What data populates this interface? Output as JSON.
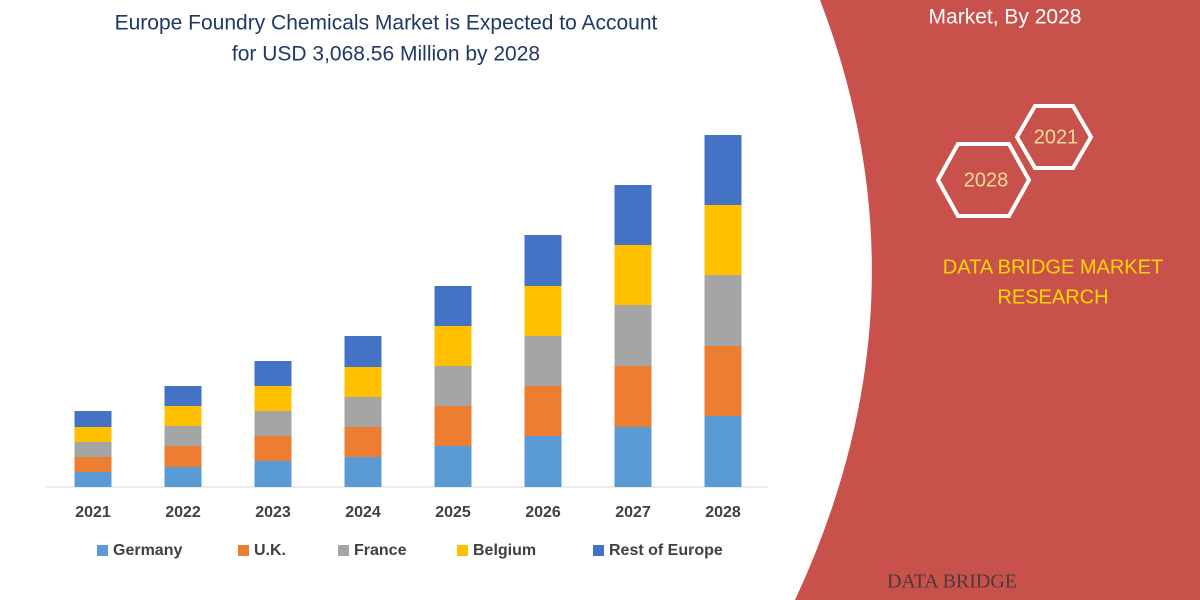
{
  "chart_data": {
    "type": "stacked-bar",
    "title": [
      "Europe Foundry Chemicals Market is Expected to Account",
      "for USD 3,068.56 Million by 2028"
    ],
    "categories": [
      "2021",
      "2022",
      "2023",
      "2024",
      "2025",
      "2026",
      "2027",
      "2028"
    ],
    "series": [
      {
        "name": "Germany",
        "color": "#5b9bd5",
        "values": [
          15,
          20,
          26,
          30,
          41,
          51,
          60,
          71
        ]
      },
      {
        "name": "U.K.",
        "color": "#ed7d31",
        "values": [
          15,
          21,
          25,
          30,
          40,
          50,
          61,
          70
        ]
      },
      {
        "name": "France",
        "color": "#a5a5a5",
        "values": [
          15,
          20,
          25,
          30,
          40,
          50,
          61,
          71
        ]
      },
      {
        "name": "Belgium",
        "color": "#ffc000",
        "values": [
          15,
          20,
          25,
          30,
          40,
          50,
          60,
          70
        ]
      },
      {
        "name": "Rest of Europe",
        "color": "#4472c4",
        "values": [
          16,
          20,
          25,
          31,
          40,
          51,
          60,
          70
        ]
      }
    ],
    "ylim": [
      0,
      360
    ]
  },
  "panel": {
    "heading": "Market, By 2028",
    "badges": [
      "2021",
      "2028"
    ],
    "brand": [
      "DATA BRIDGE MARKET",
      "RESEARCH"
    ],
    "logo": "DATA BRIDGE"
  }
}
